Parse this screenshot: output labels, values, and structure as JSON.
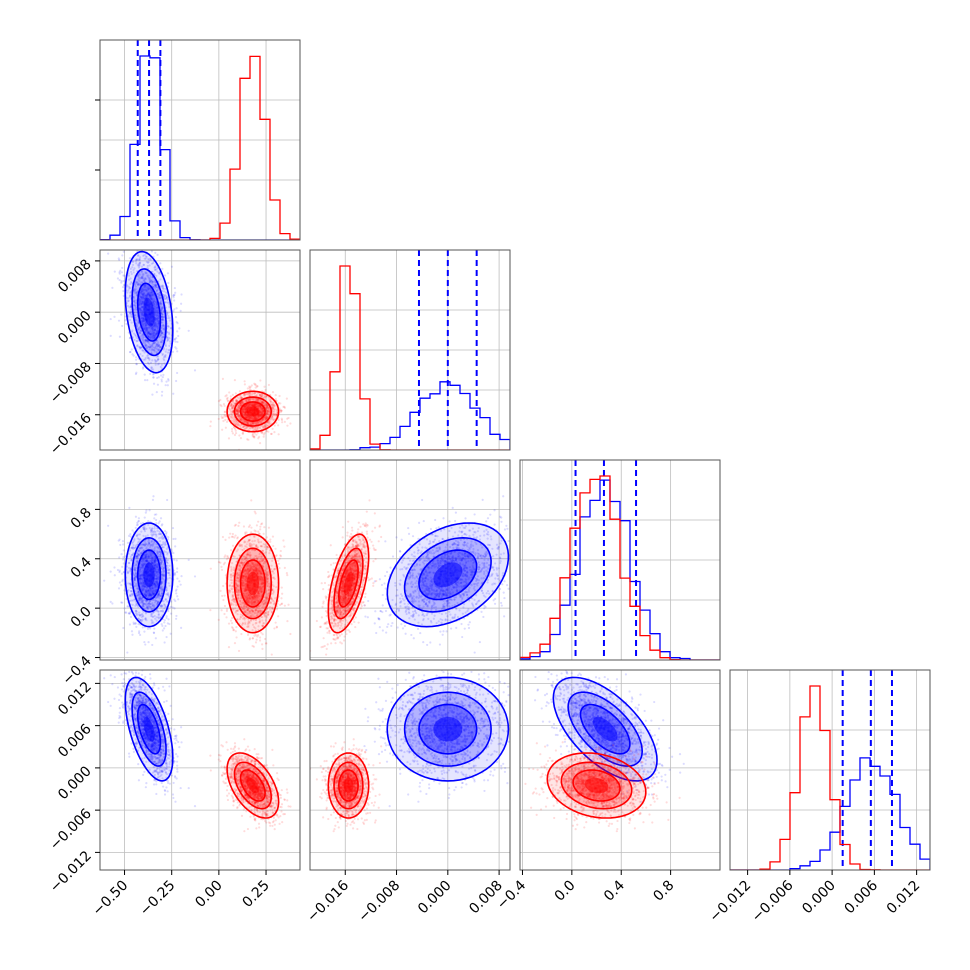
{
  "chart_data": {
    "type": "corner",
    "grid": true,
    "series": [
      {
        "color": "#0000ff",
        "means": [
          -0.37,
          0.0,
          0.27,
          0.0055
        ],
        "sigmas": [
          0.06,
          0.0045,
          0.2,
          0.0035
        ],
        "corr": [
          [
            0,
            1,
            -0.3
          ],
          [
            0,
            3,
            -0.55
          ],
          [
            1,
            2,
            0.35
          ],
          [
            2,
            3,
            -0.6
          ]
        ],
        "quantiles": [
          [
            -0.43,
            -0.37,
            -0.31
          ],
          [
            -0.0045,
            0.0,
            0.0045
          ],
          [
            0.03,
            0.26,
            0.52
          ],
          [
            0.0015,
            0.0055,
            0.0085
          ]
        ]
      },
      {
        "color": "#ff0000",
        "means": [
          0.18,
          -0.0155,
          0.2,
          -0.0025
        ],
        "sigmas": [
          0.065,
          0.0015,
          0.19,
          0.0022
        ],
        "corr": [
          [
            0,
            3,
            -0.5
          ],
          [
            1,
            2,
            0.55
          ],
          [
            2,
            3,
            -0.2
          ]
        ]
      }
    ],
    "parameters": [
      {
        "ticks": [
          -0.5,
          -0.25,
          0.0,
          0.25
        ],
        "tick_labels": [
          "−0.50",
          "−0.25",
          "0.00",
          "0.25"
        ]
      },
      {
        "ticks": [
          -0.016,
          -0.008,
          0.0,
          0.008
        ],
        "tick_labels": [
          "−0.016",
          "−0.008",
          "0.000",
          "0.008"
        ]
      },
      {
        "ticks": [
          -0.4,
          0.0,
          0.4,
          0.8
        ],
        "tick_labels": [
          "−0.4",
          "0.0",
          "0.4",
          "0.8"
        ]
      },
      {
        "ticks": [
          -0.012,
          -0.006,
          0.0,
          0.006,
          0.012
        ],
        "tick_labels": [
          "−0.012",
          "−0.006",
          "0.000",
          "0.006",
          "0.012"
        ]
      }
    ],
    "axis_ranges": [
      [
        -0.63,
        0.43
      ],
      [
        -0.0215,
        0.0097
      ],
      [
        -0.42,
        1.2
      ],
      [
        -0.0145,
        0.0139
      ]
    ]
  }
}
